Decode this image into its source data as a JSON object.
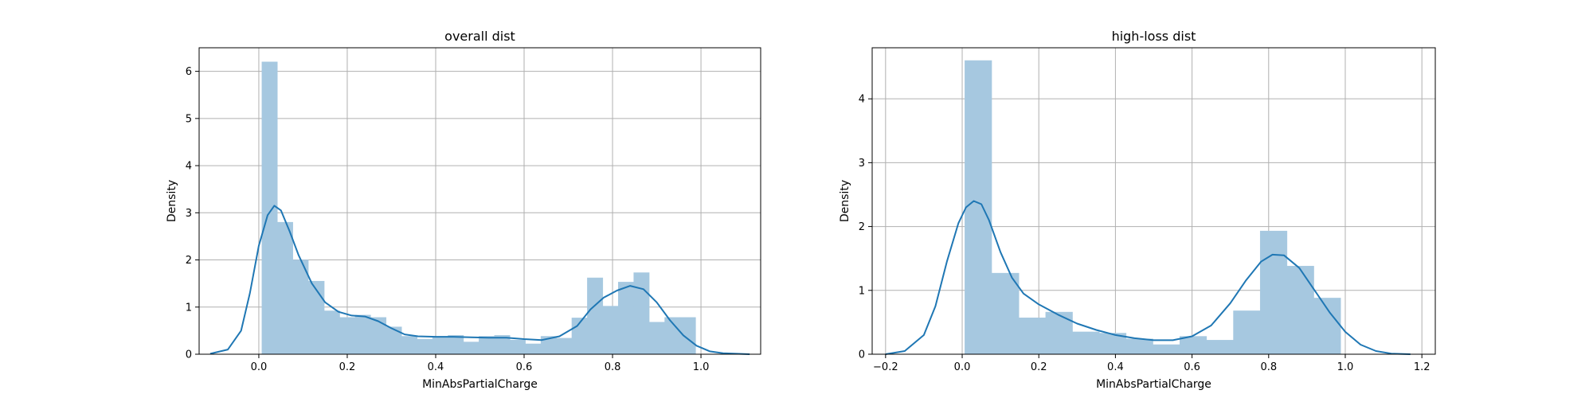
{
  "chart_data": [
    {
      "type": "histogram",
      "title": "overall dist",
      "xlabel": "MinAbsPartialCharge",
      "ylabel": "Density",
      "xlim": [
        -0.135,
        1.135
      ],
      "ylim": [
        0,
        6.5
      ],
      "xticks": [
        0.0,
        0.2,
        0.4,
        0.6,
        0.8,
        1.0
      ],
      "yticks": [
        0,
        1,
        2,
        3,
        4,
        5,
        6
      ],
      "grid": true,
      "colors": {
        "bar": "#a6c8e0",
        "kde": "#1f77b4"
      },
      "bin_edges": [
        0.007,
        0.042,
        0.077,
        0.112,
        0.148,
        0.183,
        0.218,
        0.253,
        0.288,
        0.323,
        0.358,
        0.393,
        0.428,
        0.463,
        0.498,
        0.533,
        0.568,
        0.603,
        0.638,
        0.673,
        0.708,
        0.743,
        0.778,
        0.813,
        0.848,
        0.883,
        0.918,
        0.953,
        0.988
      ],
      "densities": [
        6.2,
        2.8,
        2.0,
        1.55,
        0.92,
        0.78,
        0.83,
        0.78,
        0.58,
        0.38,
        0.32,
        0.36,
        0.4,
        0.26,
        0.38,
        0.4,
        0.3,
        0.22,
        0.38,
        0.34,
        0.77,
        1.62,
        1.02,
        1.53,
        1.73,
        0.68,
        0.78,
        0.78
      ],
      "kde": {
        "x": [
          -0.11,
          -0.07,
          -0.04,
          -0.02,
          0.0,
          0.02,
          0.035,
          0.05,
          0.07,
          0.09,
          0.12,
          0.15,
          0.18,
          0.21,
          0.24,
          0.27,
          0.3,
          0.33,
          0.36,
          0.4,
          0.44,
          0.48,
          0.52,
          0.56,
          0.6,
          0.64,
          0.68,
          0.72,
          0.75,
          0.78,
          0.81,
          0.84,
          0.87,
          0.9,
          0.93,
          0.96,
          0.99,
          1.02,
          1.05,
          1.08,
          1.11
        ],
        "y": [
          0.01,
          0.1,
          0.5,
          1.3,
          2.3,
          2.95,
          3.15,
          3.05,
          2.6,
          2.1,
          1.5,
          1.1,
          0.9,
          0.82,
          0.8,
          0.7,
          0.55,
          0.42,
          0.38,
          0.37,
          0.37,
          0.36,
          0.35,
          0.35,
          0.32,
          0.3,
          0.38,
          0.6,
          0.95,
          1.2,
          1.35,
          1.45,
          1.38,
          1.1,
          0.72,
          0.4,
          0.18,
          0.06,
          0.02,
          0.01,
          0.0
        ]
      }
    },
    {
      "type": "histogram",
      "title": "high-loss dist",
      "xlabel": "MinAbsPartialCharge",
      "ylabel": "Density",
      "xlim": [
        -0.235,
        1.235
      ],
      "ylim": [
        0,
        4.8
      ],
      "xticks": [
        -0.2,
        0.0,
        0.2,
        0.4,
        0.6,
        0.8,
        1.0,
        1.2
      ],
      "yticks": [
        0,
        1,
        2,
        3,
        4
      ],
      "grid": true,
      "colors": {
        "bar": "#a6c8e0",
        "kde": "#1f77b4"
      },
      "bin_edges": [
        0.007,
        0.077,
        0.148,
        0.218,
        0.288,
        0.358,
        0.428,
        0.498,
        0.568,
        0.638,
        0.708,
        0.778,
        0.848,
        0.918,
        0.988
      ],
      "densities": [
        4.6,
        1.27,
        0.57,
        0.66,
        0.35,
        0.33,
        0.24,
        0.15,
        0.28,
        0.22,
        0.68,
        1.93,
        1.38,
        0.88
      ],
      "kde": {
        "x": [
          -0.2,
          -0.15,
          -0.1,
          -0.07,
          -0.04,
          -0.01,
          0.01,
          0.03,
          0.05,
          0.07,
          0.1,
          0.13,
          0.16,
          0.2,
          0.25,
          0.3,
          0.35,
          0.4,
          0.45,
          0.5,
          0.55,
          0.6,
          0.65,
          0.7,
          0.74,
          0.78,
          0.81,
          0.84,
          0.88,
          0.92,
          0.96,
          1.0,
          1.04,
          1.08,
          1.12,
          1.17
        ],
        "y": [
          0.0,
          0.05,
          0.3,
          0.75,
          1.45,
          2.05,
          2.3,
          2.4,
          2.35,
          2.1,
          1.6,
          1.2,
          0.95,
          0.78,
          0.62,
          0.48,
          0.38,
          0.3,
          0.25,
          0.22,
          0.22,
          0.28,
          0.45,
          0.8,
          1.15,
          1.45,
          1.56,
          1.55,
          1.35,
          1.0,
          0.65,
          0.35,
          0.15,
          0.05,
          0.01,
          0.0
        ]
      }
    }
  ]
}
